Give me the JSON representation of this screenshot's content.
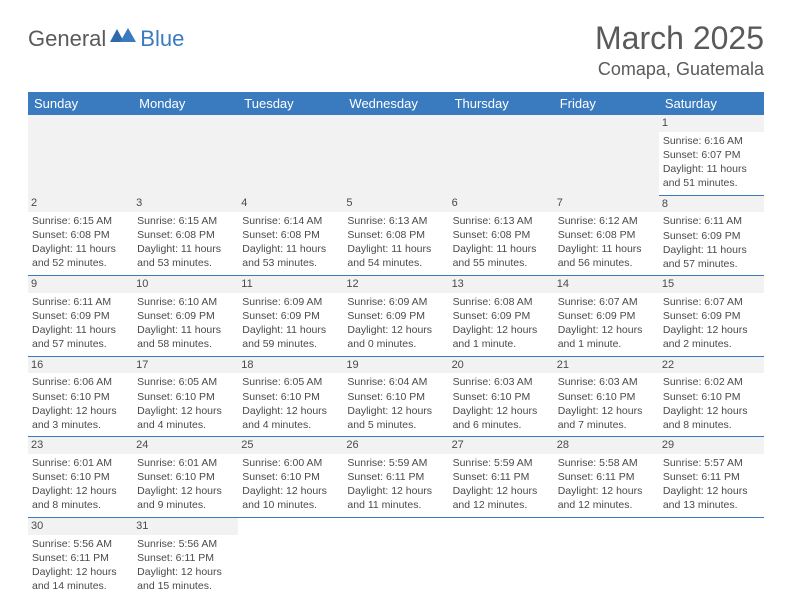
{
  "logo": {
    "part1": "General",
    "part2": "Blue"
  },
  "title": "March 2025",
  "location": "Comapa, Guatemala",
  "weekdays": [
    "Sunday",
    "Monday",
    "Tuesday",
    "Wednesday",
    "Thursday",
    "Friday",
    "Saturday"
  ],
  "colors": {
    "header_bg": "#3a7bbf",
    "text": "#4a4a4a",
    "band": "#f2f2f2"
  },
  "weeks": [
    [
      null,
      null,
      null,
      null,
      null,
      null,
      {
        "n": "1",
        "sr": "Sunrise: 6:16 AM",
        "ss": "Sunset: 6:07 PM",
        "dl": "Daylight: 11 hours and 51 minutes."
      }
    ],
    [
      {
        "n": "2",
        "sr": "Sunrise: 6:15 AM",
        "ss": "Sunset: 6:08 PM",
        "dl": "Daylight: 11 hours and 52 minutes."
      },
      {
        "n": "3",
        "sr": "Sunrise: 6:15 AM",
        "ss": "Sunset: 6:08 PM",
        "dl": "Daylight: 11 hours and 53 minutes."
      },
      {
        "n": "4",
        "sr": "Sunrise: 6:14 AM",
        "ss": "Sunset: 6:08 PM",
        "dl": "Daylight: 11 hours and 53 minutes."
      },
      {
        "n": "5",
        "sr": "Sunrise: 6:13 AM",
        "ss": "Sunset: 6:08 PM",
        "dl": "Daylight: 11 hours and 54 minutes."
      },
      {
        "n": "6",
        "sr": "Sunrise: 6:13 AM",
        "ss": "Sunset: 6:08 PM",
        "dl": "Daylight: 11 hours and 55 minutes."
      },
      {
        "n": "7",
        "sr": "Sunrise: 6:12 AM",
        "ss": "Sunset: 6:08 PM",
        "dl": "Daylight: 11 hours and 56 minutes."
      },
      {
        "n": "8",
        "sr": "Sunrise: 6:11 AM",
        "ss": "Sunset: 6:09 PM",
        "dl": "Daylight: 11 hours and 57 minutes."
      }
    ],
    [
      {
        "n": "9",
        "sr": "Sunrise: 6:11 AM",
        "ss": "Sunset: 6:09 PM",
        "dl": "Daylight: 11 hours and 57 minutes."
      },
      {
        "n": "10",
        "sr": "Sunrise: 6:10 AM",
        "ss": "Sunset: 6:09 PM",
        "dl": "Daylight: 11 hours and 58 minutes."
      },
      {
        "n": "11",
        "sr": "Sunrise: 6:09 AM",
        "ss": "Sunset: 6:09 PM",
        "dl": "Daylight: 11 hours and 59 minutes."
      },
      {
        "n": "12",
        "sr": "Sunrise: 6:09 AM",
        "ss": "Sunset: 6:09 PM",
        "dl": "Daylight: 12 hours and 0 minutes."
      },
      {
        "n": "13",
        "sr": "Sunrise: 6:08 AM",
        "ss": "Sunset: 6:09 PM",
        "dl": "Daylight: 12 hours and 1 minute."
      },
      {
        "n": "14",
        "sr": "Sunrise: 6:07 AM",
        "ss": "Sunset: 6:09 PM",
        "dl": "Daylight: 12 hours and 1 minute."
      },
      {
        "n": "15",
        "sr": "Sunrise: 6:07 AM",
        "ss": "Sunset: 6:09 PM",
        "dl": "Daylight: 12 hours and 2 minutes."
      }
    ],
    [
      {
        "n": "16",
        "sr": "Sunrise: 6:06 AM",
        "ss": "Sunset: 6:10 PM",
        "dl": "Daylight: 12 hours and 3 minutes."
      },
      {
        "n": "17",
        "sr": "Sunrise: 6:05 AM",
        "ss": "Sunset: 6:10 PM",
        "dl": "Daylight: 12 hours and 4 minutes."
      },
      {
        "n": "18",
        "sr": "Sunrise: 6:05 AM",
        "ss": "Sunset: 6:10 PM",
        "dl": "Daylight: 12 hours and 4 minutes."
      },
      {
        "n": "19",
        "sr": "Sunrise: 6:04 AM",
        "ss": "Sunset: 6:10 PM",
        "dl": "Daylight: 12 hours and 5 minutes."
      },
      {
        "n": "20",
        "sr": "Sunrise: 6:03 AM",
        "ss": "Sunset: 6:10 PM",
        "dl": "Daylight: 12 hours and 6 minutes."
      },
      {
        "n": "21",
        "sr": "Sunrise: 6:03 AM",
        "ss": "Sunset: 6:10 PM",
        "dl": "Daylight: 12 hours and 7 minutes."
      },
      {
        "n": "22",
        "sr": "Sunrise: 6:02 AM",
        "ss": "Sunset: 6:10 PM",
        "dl": "Daylight: 12 hours and 8 minutes."
      }
    ],
    [
      {
        "n": "23",
        "sr": "Sunrise: 6:01 AM",
        "ss": "Sunset: 6:10 PM",
        "dl": "Daylight: 12 hours and 8 minutes."
      },
      {
        "n": "24",
        "sr": "Sunrise: 6:01 AM",
        "ss": "Sunset: 6:10 PM",
        "dl": "Daylight: 12 hours and 9 minutes."
      },
      {
        "n": "25",
        "sr": "Sunrise: 6:00 AM",
        "ss": "Sunset: 6:10 PM",
        "dl": "Daylight: 12 hours and 10 minutes."
      },
      {
        "n": "26",
        "sr": "Sunrise: 5:59 AM",
        "ss": "Sunset: 6:11 PM",
        "dl": "Daylight: 12 hours and 11 minutes."
      },
      {
        "n": "27",
        "sr": "Sunrise: 5:59 AM",
        "ss": "Sunset: 6:11 PM",
        "dl": "Daylight: 12 hours and 12 minutes."
      },
      {
        "n": "28",
        "sr": "Sunrise: 5:58 AM",
        "ss": "Sunset: 6:11 PM",
        "dl": "Daylight: 12 hours and 12 minutes."
      },
      {
        "n": "29",
        "sr": "Sunrise: 5:57 AM",
        "ss": "Sunset: 6:11 PM",
        "dl": "Daylight: 12 hours and 13 minutes."
      }
    ],
    [
      {
        "n": "30",
        "sr": "Sunrise: 5:56 AM",
        "ss": "Sunset: 6:11 PM",
        "dl": "Daylight: 12 hours and 14 minutes."
      },
      {
        "n": "31",
        "sr": "Sunrise: 5:56 AM",
        "ss": "Sunset: 6:11 PM",
        "dl": "Daylight: 12 hours and 15 minutes."
      },
      null,
      null,
      null,
      null,
      null
    ]
  ]
}
